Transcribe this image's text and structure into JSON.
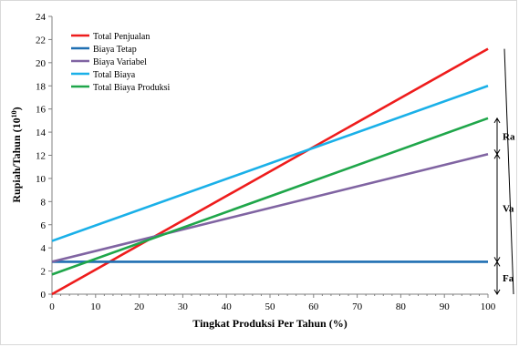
{
  "chart_data": {
    "type": "line",
    "title": "",
    "xlabel": "Tingkat Produksi Per Tahun (%)",
    "ylabel_main": "Rupiah/Tahun (10",
    "ylabel_sup": "10",
    "ylabel_close": ")",
    "xlim": [
      0,
      100
    ],
    "ylim": [
      0,
      24
    ],
    "x_ticks": [
      "0",
      "10",
      "20",
      "30",
      "40",
      "50",
      "60",
      "70",
      "80",
      "90",
      "100"
    ],
    "y_ticks": [
      "0",
      "2",
      "4",
      "6",
      "8",
      "10",
      "12",
      "14",
      "16",
      "18",
      "20",
      "22",
      "24"
    ],
    "x_tick_values": [
      0,
      10,
      20,
      30,
      40,
      50,
      60,
      70,
      80,
      90,
      100
    ],
    "y_tick_values": [
      0,
      2,
      4,
      6,
      8,
      10,
      12,
      14,
      16,
      18,
      20,
      22,
      24
    ],
    "grid": false,
    "legend_position": "top-left",
    "series": [
      {
        "name": "Total Penjualan",
        "color": "#ee1c1c",
        "x": [
          0,
          100
        ],
        "y": [
          0,
          21.2
        ]
      },
      {
        "name": "Biaya Tetap",
        "color": "#1f6fb2",
        "x": [
          0,
          100
        ],
        "y": [
          2.8,
          2.8
        ]
      },
      {
        "name": "Biaya Variabel",
        "color": "#8064a2",
        "x": [
          0,
          100
        ],
        "y": [
          2.8,
          12.1
        ]
      },
      {
        "name": "Total Biaya",
        "color": "#1ab0e8",
        "x": [
          0,
          100
        ],
        "y": [
          4.6,
          18.0
        ]
      },
      {
        "name": "Total Biaya Produksi",
        "color": "#1fa64a",
        "x": [
          0,
          100
        ],
        "y": [
          1.7,
          15.2
        ]
      }
    ],
    "annotations": [
      {
        "label": "Ra",
        "y_from": 12.1,
        "y_to": 15.2
      },
      {
        "label": "Va",
        "y_from": 2.8,
        "y_to": 12.1
      },
      {
        "label": "Fa",
        "y_from": 0,
        "y_to": 2.8
      }
    ],
    "outer_brace_range": [
      0,
      21.2
    ]
  }
}
